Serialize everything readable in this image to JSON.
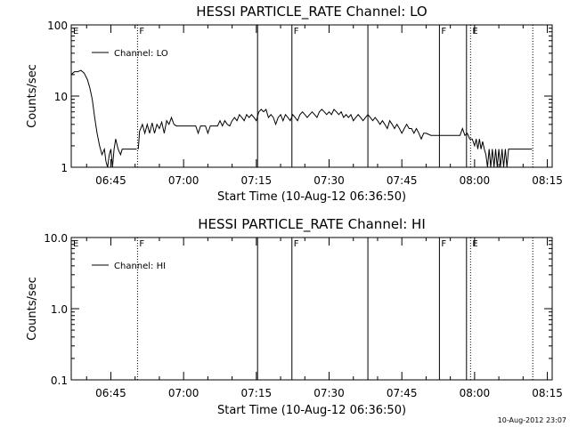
{
  "footer_timestamp": "10-Aug-2012 23:07",
  "chart_data": [
    {
      "type": "line",
      "title": "HESSI PARTICLE_RATE Channel: LO",
      "xlabel": "Start Time (10-Aug-12 06:36:50)",
      "ylabel": "Counts/sec",
      "yscale": "log",
      "ylim": [
        1,
        100
      ],
      "yticks": [
        {
          "value": 1,
          "label": "1"
        },
        {
          "value": 10,
          "label": "10"
        },
        {
          "value": 100,
          "label": "100"
        }
      ],
      "xlim": [
        "06:36:50",
        "08:16:00"
      ],
      "xticks": [
        "06:45",
        "07:00",
        "07:15",
        "07:30",
        "07:45",
        "08:00",
        "08:15"
      ],
      "legend": {
        "label": "Channel: LO",
        "placement": "top-left"
      },
      "grid": false,
      "markers": [
        {
          "time": "06:36:50",
          "label": "E",
          "style": "solid"
        },
        {
          "time": "06:50:30",
          "label": "F",
          "style": "dotted"
        },
        {
          "time": "07:15:15",
          "label": "",
          "style": "solid"
        },
        {
          "time": "07:22:20",
          "label": "F",
          "style": "solid"
        },
        {
          "time": "07:38:00",
          "label": "",
          "style": "solid"
        },
        {
          "time": "07:52:45",
          "label": "F",
          "style": "solid"
        },
        {
          "time": "07:58:20",
          "label": "",
          "style": "solid"
        },
        {
          "time": "07:59:10",
          "label": "E",
          "style": "dotted"
        },
        {
          "time": "08:12:00",
          "label": "",
          "style": "dotted"
        }
      ],
      "series": [
        {
          "name": "Channel: LO",
          "segments": [
            [
              [
                "06:36:50",
                20
              ],
              [
                "06:37:30",
                22
              ],
              [
                "06:38:10",
                22
              ],
              [
                "06:38:50",
                23
              ],
              [
                "06:39:30",
                21
              ],
              [
                "06:40:10",
                17
              ],
              [
                "06:40:40",
                13
              ],
              [
                "06:41:10",
                9
              ],
              [
                "06:41:40",
                5
              ],
              [
                "06:42:10",
                3
              ],
              [
                "06:42:40",
                2
              ],
              [
                "06:43:10",
                1.5
              ],
              [
                "06:43:40",
                1.8
              ],
              [
                "06:44:00",
                1.2
              ],
              [
                "06:44:20",
                1
              ],
              [
                "06:44:40",
                1.5
              ],
              [
                "06:45:00",
                1.8
              ],
              [
                "06:45:20",
                1
              ],
              [
                "06:45:40",
                1.8
              ],
              [
                "06:46:00",
                2.5
              ],
              [
                "06:46:30",
                1.8
              ],
              [
                "06:47:00",
                1.5
              ],
              [
                "06:47:20",
                1.8
              ],
              [
                "06:48:00",
                1.8
              ],
              [
                "06:49:00",
                1.8
              ],
              [
                "06:50:20",
                1.8
              ]
            ],
            [
              [
                "06:50:40",
                1.8
              ],
              [
                "06:50:55",
                3.2
              ],
              [
                "06:51:30",
                4
              ],
              [
                "06:52:00",
                3
              ],
              [
                "06:52:30",
                4
              ],
              [
                "06:53:00",
                3
              ],
              [
                "06:53:30",
                4.2
              ],
              [
                "06:54:00",
                3
              ],
              [
                "06:54:30",
                4
              ],
              [
                "06:55:00",
                3.5
              ],
              [
                "06:55:30",
                4.3
              ],
              [
                "06:56:00",
                3
              ],
              [
                "06:56:30",
                4.5
              ],
              [
                "06:57:00",
                4
              ],
              [
                "06:57:30",
                5
              ],
              [
                "06:58:00",
                4
              ],
              [
                "06:58:30",
                3.8
              ],
              [
                "07:00:00",
                3.8
              ],
              [
                "07:01:30",
                3.8
              ],
              [
                "07:02:30",
                3.8
              ],
              [
                "07:03:00",
                3
              ],
              [
                "07:03:30",
                3.8
              ],
              [
                "07:04:30",
                3.8
              ],
              [
                "07:05:00",
                3
              ],
              [
                "07:05:30",
                3.8
              ],
              [
                "07:07:00",
                3.8
              ],
              [
                "07:07:30",
                4.5
              ],
              [
                "07:08:00",
                3.8
              ],
              [
                "07:08:30",
                4.5
              ],
              [
                "07:09:00",
                4
              ],
              [
                "07:09:30",
                3.8
              ],
              [
                "07:10:00",
                4.5
              ],
              [
                "07:10:30",
                5
              ],
              [
                "07:11:00",
                4.5
              ],
              [
                "07:11:30",
                5.5
              ],
              [
                "07:12:00",
                5
              ],
              [
                "07:12:30",
                4.5
              ],
              [
                "07:13:00",
                5.5
              ],
              [
                "07:13:30",
                5
              ],
              [
                "07:14:00",
                5.5
              ],
              [
                "07:14:30",
                5
              ],
              [
                "07:15:00",
                4.5
              ],
              [
                "07:15:30",
                6
              ],
              [
                "07:16:00",
                6.5
              ],
              [
                "07:16:30",
                6
              ],
              [
                "07:17:00",
                6.5
              ],
              [
                "07:17:30",
                5
              ],
              [
                "07:18:00",
                5.5
              ],
              [
                "07:18:30",
                5
              ],
              [
                "07:19:00",
                4
              ],
              [
                "07:19:30",
                5
              ],
              [
                "07:20:00",
                5.5
              ],
              [
                "07:20:30",
                4.5
              ],
              [
                "07:21:00",
                5.5
              ],
              [
                "07:21:30",
                5
              ],
              [
                "07:22:00",
                4.5
              ],
              [
                "07:22:30",
                5.5
              ],
              [
                "07:23:00",
                5
              ],
              [
                "07:23:30",
                4.5
              ],
              [
                "07:24:00",
                5.5
              ],
              [
                "07:24:30",
                6
              ],
              [
                "07:25:00",
                5.5
              ],
              [
                "07:25:30",
                5
              ],
              [
                "07:26:00",
                5.5
              ],
              [
                "07:26:30",
                6
              ],
              [
                "07:27:00",
                5.5
              ],
              [
                "07:27:30",
                5
              ],
              [
                "07:28:00",
                6
              ],
              [
                "07:28:30",
                6.5
              ],
              [
                "07:29:00",
                6
              ],
              [
                "07:29:30",
                5.5
              ],
              [
                "07:30:00",
                6
              ],
              [
                "07:30:30",
                5.5
              ],
              [
                "07:31:00",
                6.5
              ],
              [
                "07:31:30",
                6
              ],
              [
                "07:32:00",
                5.5
              ],
              [
                "07:32:30",
                6
              ],
              [
                "07:33:00",
                5
              ],
              [
                "07:33:30",
                5.5
              ],
              [
                "07:34:00",
                5
              ],
              [
                "07:34:30",
                5.5
              ],
              [
                "07:35:00",
                4.5
              ],
              [
                "07:35:30",
                5
              ],
              [
                "07:36:00",
                5.5
              ],
              [
                "07:36:30",
                5
              ],
              [
                "07:37:00",
                4.5
              ],
              [
                "07:37:30",
                5
              ],
              [
                "07:38:00",
                5.5
              ],
              [
                "07:38:30",
                5
              ],
              [
                "07:39:00",
                4.5
              ],
              [
                "07:39:30",
                5
              ],
              [
                "07:40:00",
                4.5
              ],
              [
                "07:40:30",
                4
              ],
              [
                "07:41:00",
                4.5
              ],
              [
                "07:41:30",
                4
              ],
              [
                "07:42:00",
                3.5
              ],
              [
                "07:42:30",
                4.5
              ],
              [
                "07:43:00",
                4
              ],
              [
                "07:43:30",
                3.5
              ],
              [
                "07:44:00",
                4
              ],
              [
                "07:44:30",
                3.5
              ],
              [
                "07:45:00",
                3
              ],
              [
                "07:45:30",
                3.5
              ],
              [
                "07:46:00",
                4
              ],
              [
                "07:46:30",
                3.5
              ],
              [
                "07:47:00",
                3.5
              ],
              [
                "07:47:30",
                3
              ],
              [
                "07:48:00",
                3.5
              ],
              [
                "07:48:30",
                3
              ],
              [
                "07:49:00",
                2.5
              ],
              [
                "07:49:30",
                3
              ],
              [
                "07:50:00",
                3
              ],
              [
                "07:51:00",
                2.8
              ],
              [
                "07:52:00",
                2.8
              ],
              [
                "07:53:00",
                2.8
              ],
              [
                "07:54:30",
                2.8
              ],
              [
                "07:56:00",
                2.8
              ],
              [
                "07:57:00",
                2.8
              ],
              [
                "07:57:30",
                3.5
              ],
              [
                "07:58:00",
                2.8
              ],
              [
                "07:58:30",
                3
              ],
              [
                "07:59:00",
                2.5
              ],
              [
                "07:59:30",
                2.5
              ],
              [
                "08:00:00",
                2
              ],
              [
                "08:00:20",
                2.5
              ],
              [
                "08:00:40",
                1.8
              ],
              [
                "08:01:00",
                2.5
              ],
              [
                "08:01:20",
                1.8
              ],
              [
                "08:01:40",
                2.3
              ],
              [
                "08:02:00",
                1.8
              ],
              [
                "08:02:20",
                1.5
              ],
              [
                "08:02:40",
                1
              ],
              [
                "08:03:00",
                1.8
              ],
              [
                "08:03:20",
                1
              ],
              [
                "08:03:40",
                1.8
              ],
              [
                "08:04:00",
                1
              ],
              [
                "08:04:20",
                1.8
              ],
              [
                "08:04:40",
                1
              ],
              [
                "08:05:00",
                1.8
              ],
              [
                "08:05:20",
                1
              ],
              [
                "08:05:40",
                1.8
              ],
              [
                "08:06:00",
                1
              ],
              [
                "08:06:20",
                1.8
              ],
              [
                "08:06:40",
                1
              ],
              [
                "08:07:00",
                1.8
              ],
              [
                "08:08:00",
                1.8
              ],
              [
                "08:09:00",
                1.8
              ],
              [
                "08:10:00",
                1.8
              ],
              [
                "08:11:00",
                1.8
              ],
              [
                "08:11:50",
                1.8
              ]
            ]
          ]
        }
      ]
    },
    {
      "type": "line",
      "title": "HESSI PARTICLE_RATE Channel: HI",
      "xlabel": "Start Time (10-Aug-12 06:36:50)",
      "ylabel": "Counts/sec",
      "yscale": "log",
      "ylim": [
        0.1,
        10
      ],
      "yticks": [
        {
          "value": 0.1,
          "label": "0.1"
        },
        {
          "value": 1,
          "label": "1.0"
        },
        {
          "value": 10,
          "label": "10.0"
        }
      ],
      "xlim": [
        "06:36:50",
        "08:16:00"
      ],
      "xticks": [
        "06:45",
        "07:00",
        "07:15",
        "07:30",
        "07:45",
        "08:00",
        "08:15"
      ],
      "legend": {
        "label": "Channel: HI",
        "placement": "top-left"
      },
      "grid": false,
      "markers": [
        {
          "time": "06:36:50",
          "label": "E",
          "style": "solid"
        },
        {
          "time": "06:50:30",
          "label": "F",
          "style": "dotted"
        },
        {
          "time": "07:15:15",
          "label": "",
          "style": "solid"
        },
        {
          "time": "07:22:20",
          "label": "F",
          "style": "solid"
        },
        {
          "time": "07:38:00",
          "label": "",
          "style": "solid"
        },
        {
          "time": "07:52:45",
          "label": "F",
          "style": "solid"
        },
        {
          "time": "07:58:20",
          "label": "",
          "style": "solid"
        },
        {
          "time": "07:59:10",
          "label": "E",
          "style": "dotted"
        },
        {
          "time": "08:12:00",
          "label": "",
          "style": "dotted"
        }
      ],
      "series": []
    }
  ]
}
